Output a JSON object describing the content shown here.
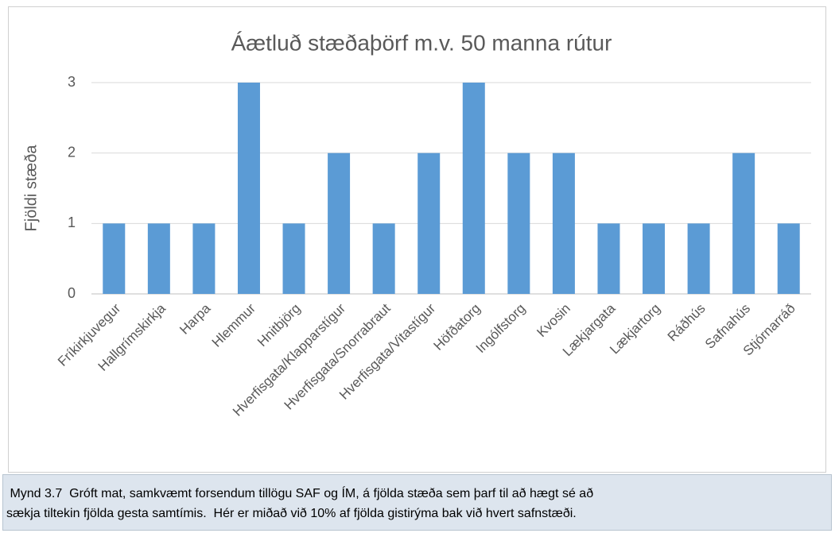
{
  "chart_data": {
    "type": "bar",
    "title": "Áætluð stæðaþörf m.v. 50 manna rútur",
    "y_label": "Fjöldi stæða",
    "categories": [
      "Fríkirkjuvegur",
      "Hallgrímskirkja",
      "Harpa",
      "Hlemmur",
      "Hnitbjörg",
      "Hverfisgata/Klapparstígur",
      "Hverfisgata/Snorrabraut",
      "Hverfisgata/Vitastígur",
      "Höfðatorg",
      "Ingólfstorg",
      "Kvosin",
      "Lækjargata",
      "Lækjartorg",
      "Ráðhús",
      "Safnahús",
      "Stjórnarráð"
    ],
    "values": [
      1,
      1,
      1,
      3,
      1,
      2,
      1,
      2,
      3,
      2,
      2,
      1,
      1,
      1,
      2,
      1
    ],
    "color": "#5b9bd5",
    "ylim": [
      0,
      3
    ],
    "yticks": [
      0,
      1,
      2,
      3
    ],
    "grid": true
  },
  "caption": [
    " Mynd 3.7  Gróft mat, samkvæmt forsendum tillögu SAF og ÍM, á fjölda stæða sem þarf til að hægt sé að",
    "sækja tiltekin fjölda gesta samtímis.  Hér er miðað við 10% af fjölda gistirýma bak við hvert safnstæði."
  ]
}
